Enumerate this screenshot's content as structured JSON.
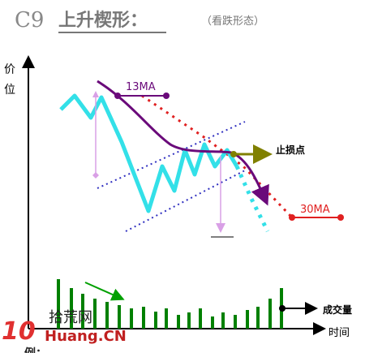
{
  "header": {
    "code": "C9",
    "title": "上升楔形：",
    "subtitle": "（看跌形态）"
  },
  "axes": {
    "y_label_1": "价",
    "y_label_2": "位",
    "x_label": "时间"
  },
  "labels": {
    "ma13": "13MA",
    "ma30": "30MA",
    "stop_loss": "止损点",
    "volume": "成交量",
    "example": "例："
  },
  "watermark": {
    "number": "10",
    "site": "拾荒网",
    "domain": "Huang.CN"
  }
}
